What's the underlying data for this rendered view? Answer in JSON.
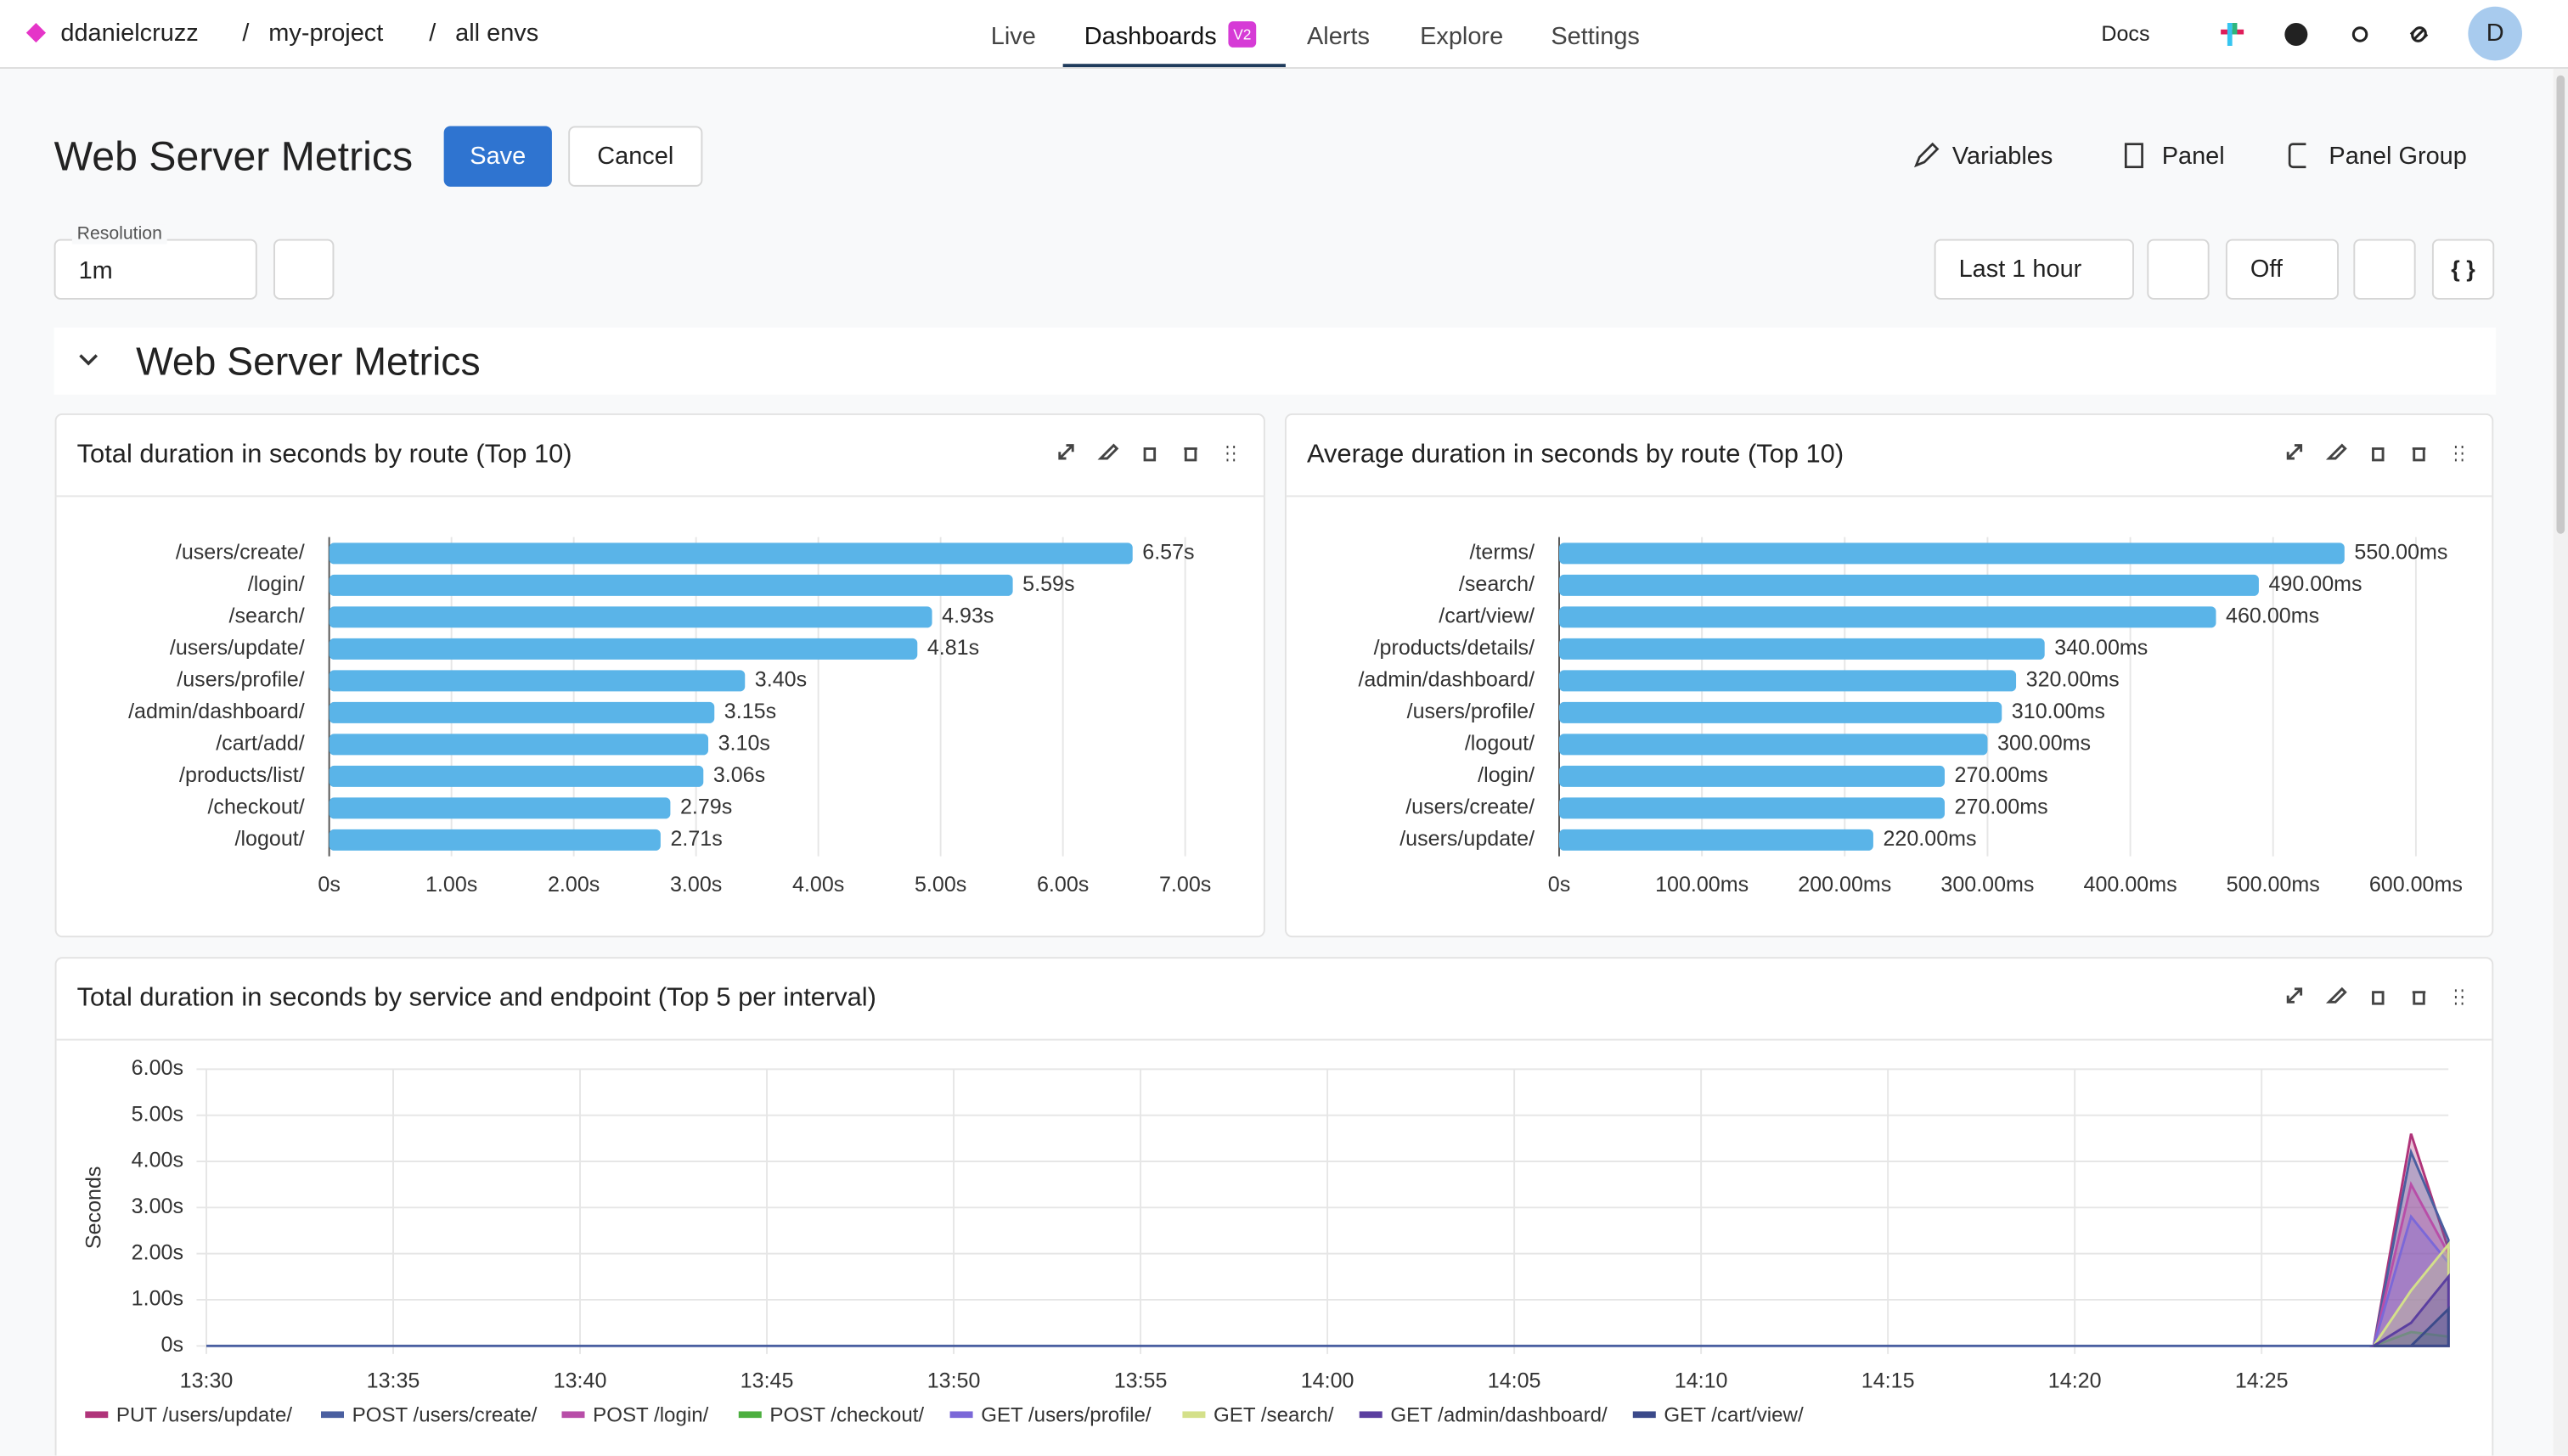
{
  "header": {
    "org": "ddanielcruzz",
    "project": "my-project",
    "env": "all envs",
    "separator": "/",
    "nav": [
      "Live",
      "Dashboards",
      "Alerts",
      "Explore",
      "Settings"
    ],
    "badge": "V2",
    "docs": "Docs",
    "avatar": "D"
  },
  "toolbar": {
    "title": "Web Server Metrics",
    "save": "Save",
    "cancel": "Cancel",
    "actions": [
      "Variables",
      "Panel",
      "Panel Group"
    ],
    "resolution_label": "Resolution",
    "resolution": "1m",
    "time_range": "Last 1 hour",
    "refresh": "Off"
  },
  "group": {
    "title": "Web Server Metrics"
  },
  "chart_data": [
    {
      "type": "hbar",
      "title": "Total duration in seconds by route (Top 10)",
      "color": "#5ab4e8",
      "grid": true,
      "categories": [
        "/users/create/",
        "/login/",
        "/search/",
        "/users/update/",
        "/users/profile/",
        "/admin/dashboard/",
        "/cart/add/",
        "/products/list/",
        "/checkout/",
        "/logout/"
      ],
      "values": [
        6.57,
        5.59,
        4.93,
        4.81,
        3.4,
        3.15,
        3.1,
        3.06,
        2.79,
        2.71
      ],
      "value_labels": [
        "6.57s",
        "5.59s",
        "4.93s",
        "4.81s",
        "3.40s",
        "3.15s",
        "3.10s",
        "3.06s",
        "2.79s",
        "2.71s"
      ],
      "xlim": [
        0,
        7.5
      ],
      "xticks": [
        {
          "value": 0,
          "label": "0s"
        },
        {
          "value": 1,
          "label": "1.00s"
        },
        {
          "value": 2,
          "label": "2.00s"
        },
        {
          "value": 3,
          "label": "3.00s"
        },
        {
          "value": 4,
          "label": "4.00s"
        },
        {
          "value": 5,
          "label": "5.00s"
        },
        {
          "value": 6,
          "label": "6.00s"
        },
        {
          "value": 7,
          "label": "7.00s"
        }
      ]
    },
    {
      "type": "hbar",
      "title": "Average duration in seconds by route (Top 10)",
      "color": "#5ab4e8",
      "grid": true,
      "categories": [
        "/terms/",
        "/search/",
        "/cart/view/",
        "/products/details/",
        "/admin/dashboard/",
        "/users/profile/",
        "/logout/",
        "/login/",
        "/users/create/",
        "/users/update/"
      ],
      "values": [
        550,
        490,
        460,
        340,
        320,
        310,
        300,
        270,
        270,
        220
      ],
      "value_labels": [
        "550.00ms",
        "490.00ms",
        "460.00ms",
        "340.00ms",
        "320.00ms",
        "310.00ms",
        "300.00ms",
        "270.00ms",
        "270.00ms",
        "220.00ms"
      ],
      "xlim": [
        0,
        640
      ],
      "xticks": [
        {
          "value": 0,
          "label": "0s"
        },
        {
          "value": 100,
          "label": "100.00ms"
        },
        {
          "value": 200,
          "label": "200.00ms"
        },
        {
          "value": 300,
          "label": "300.00ms"
        },
        {
          "value": 400,
          "label": "400.00ms"
        },
        {
          "value": 500,
          "label": "500.00ms"
        },
        {
          "value": 600,
          "label": "600.00ms"
        }
      ]
    },
    {
      "type": "area",
      "title": "Total duration in seconds by service and endpoint (Top 5 per interval)",
      "y_label": "Seconds",
      "grid": true,
      "x": [
        "14:28",
        "14:29",
        "14:30"
      ],
      "xlim": [
        "13:30",
        "14:30"
      ],
      "xticks": [
        "13:30",
        "13:35",
        "13:40",
        "13:45",
        "13:50",
        "13:55",
        "14:00",
        "14:05",
        "14:10",
        "14:15",
        "14:20",
        "14:25"
      ],
      "ylim": [
        0,
        6
      ],
      "yticks": [
        {
          "value": 0,
          "label": "0s"
        },
        {
          "value": 1,
          "label": "1.00s"
        },
        {
          "value": 2,
          "label": "2.00s"
        },
        {
          "value": 3,
          "label": "3.00s"
        },
        {
          "value": 4,
          "label": "4.00s"
        },
        {
          "value": 5,
          "label": "5.00s"
        },
        {
          "value": 6,
          "label": "6.00s"
        }
      ],
      "series": [
        {
          "name": "PUT /users/update/",
          "color": "#b0347a",
          "values": [
            0,
            4.6,
            2.1
          ]
        },
        {
          "name": "POST /users/create/",
          "color": "#4a5fa0",
          "values": [
            0,
            4.2,
            2.3
          ]
        },
        {
          "name": "POST /login/",
          "color": "#b84ea8",
          "values": [
            0,
            3.5,
            2.0
          ]
        },
        {
          "name": "POST /checkout/",
          "color": "#4caf3f",
          "values": [
            0,
            0.3,
            0.2
          ]
        },
        {
          "name": "GET /users/profile/",
          "color": "#7b68d8",
          "values": [
            0,
            2.8,
            1.8
          ]
        },
        {
          "name": "GET /search/",
          "color": "#d4e08a",
          "values": [
            0,
            1.2,
            2.2
          ]
        },
        {
          "name": "GET /admin/dashboard/",
          "color": "#5b3fa0",
          "values": [
            0,
            0.5,
            1.5
          ]
        },
        {
          "name": "GET /cart/view/",
          "color": "#3b4a8a",
          "values": [
            0,
            0,
            0.8
          ]
        }
      ]
    }
  ]
}
